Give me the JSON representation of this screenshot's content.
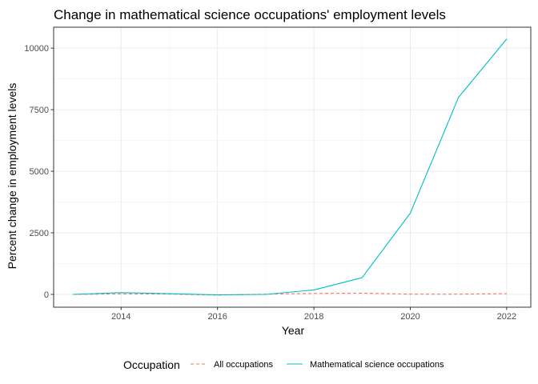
{
  "chart_data": {
    "type": "line",
    "title": "Change in mathematical science occupations' employment levels",
    "xlabel": "Year",
    "ylabel": "Percent change in employment levels",
    "x": [
      2013,
      2014,
      2015,
      2016,
      2017,
      2018,
      2019,
      2020,
      2021,
      2022
    ],
    "xlim": [
      2012.6,
      2022.5
    ],
    "ylim": [
      -520,
      10850
    ],
    "xticks": [
      2014,
      2016,
      2018,
      2020,
      2022
    ],
    "yticks": [
      0,
      2500,
      5000,
      7500,
      10000
    ],
    "grid": true,
    "legend": {
      "title": "Occupation",
      "position": "bottom"
    },
    "series": [
      {
        "name": "All occupations",
        "color": "#F8766D",
        "dash": "dashed",
        "values": [
          0,
          20,
          15,
          -30,
          10,
          40,
          50,
          10,
          10,
          30
        ]
      },
      {
        "name": "Mathematical science occupations",
        "color": "#00BFC4",
        "dash": "solid",
        "values": [
          0,
          70,
          30,
          -20,
          0,
          180,
          680,
          3300,
          8000,
          10370
        ]
      }
    ]
  }
}
